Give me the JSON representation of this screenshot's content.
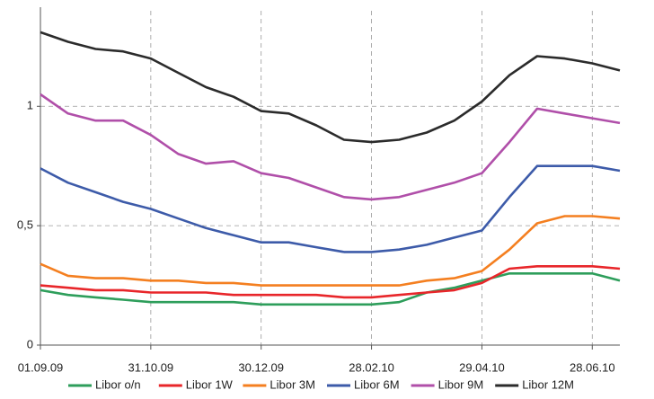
{
  "chart_data": {
    "type": "line",
    "x": [
      "01.09.09",
      "16.09.09",
      "01.10.09",
      "16.10.09",
      "31.10.09",
      "15.11.09",
      "30.11.09",
      "15.12.09",
      "30.12.09",
      "14.01.10",
      "29.01.10",
      "13.02.10",
      "28.02.10",
      "15.03.10",
      "30.03.10",
      "14.04.10",
      "29.04.10",
      "14.05.10",
      "29.05.10",
      "13.06.10",
      "28.06.10",
      "13.07.10"
    ],
    "series": [
      {
        "name": "Libor o/n",
        "color": "#2e9e5b",
        "values": [
          0.23,
          0.21,
          0.2,
          0.19,
          0.18,
          0.18,
          0.18,
          0.18,
          0.17,
          0.17,
          0.17,
          0.17,
          0.17,
          0.18,
          0.22,
          0.24,
          0.27,
          0.3,
          0.3,
          0.3,
          0.3,
          0.27
        ]
      },
      {
        "name": "Libor 1W",
        "color": "#e8262a",
        "values": [
          0.25,
          0.24,
          0.23,
          0.23,
          0.22,
          0.22,
          0.22,
          0.21,
          0.21,
          0.21,
          0.21,
          0.2,
          0.2,
          0.21,
          0.22,
          0.23,
          0.26,
          0.32,
          0.33,
          0.33,
          0.33,
          0.32
        ]
      },
      {
        "name": "Libor 3M",
        "color": "#f47f20",
        "values": [
          0.34,
          0.29,
          0.28,
          0.28,
          0.27,
          0.27,
          0.26,
          0.26,
          0.25,
          0.25,
          0.25,
          0.25,
          0.25,
          0.25,
          0.27,
          0.28,
          0.31,
          0.4,
          0.51,
          0.54,
          0.54,
          0.53
        ]
      },
      {
        "name": "Libor 6M",
        "color": "#3d5ba9",
        "values": [
          0.74,
          0.68,
          0.64,
          0.6,
          0.57,
          0.53,
          0.49,
          0.46,
          0.43,
          0.43,
          0.41,
          0.39,
          0.39,
          0.4,
          0.42,
          0.45,
          0.48,
          0.62,
          0.75,
          0.75,
          0.75,
          0.73
        ]
      },
      {
        "name": "Libor 9M",
        "color": "#b04fa9",
        "values": [
          1.05,
          0.97,
          0.94,
          0.94,
          0.88,
          0.8,
          0.76,
          0.77,
          0.72,
          0.7,
          0.66,
          0.62,
          0.61,
          0.62,
          0.65,
          0.68,
          0.72,
          0.85,
          0.99,
          0.97,
          0.95,
          0.93
        ]
      },
      {
        "name": "Libor 12M",
        "color": "#2b2b2b",
        "values": [
          1.31,
          1.27,
          1.24,
          1.23,
          1.2,
          1.14,
          1.08,
          1.04,
          0.98,
          0.97,
          0.92,
          0.86,
          0.85,
          0.86,
          0.89,
          0.94,
          1.02,
          1.13,
          1.21,
          1.2,
          1.18,
          1.15
        ]
      }
    ],
    "xlim": [
      "01.09.09",
      "13.07.10"
    ],
    "xticks": [
      "01.09.09",
      "31.10.09",
      "30.12.09",
      "28.02.10",
      "29.04.10",
      "28.06.10"
    ],
    "ylim": [
      0,
      1.4
    ],
    "yticks": [
      0,
      {
        "value": 0.5,
        "label": "0,5"
      },
      1
    ],
    "grid": true,
    "legend": "bottom"
  }
}
